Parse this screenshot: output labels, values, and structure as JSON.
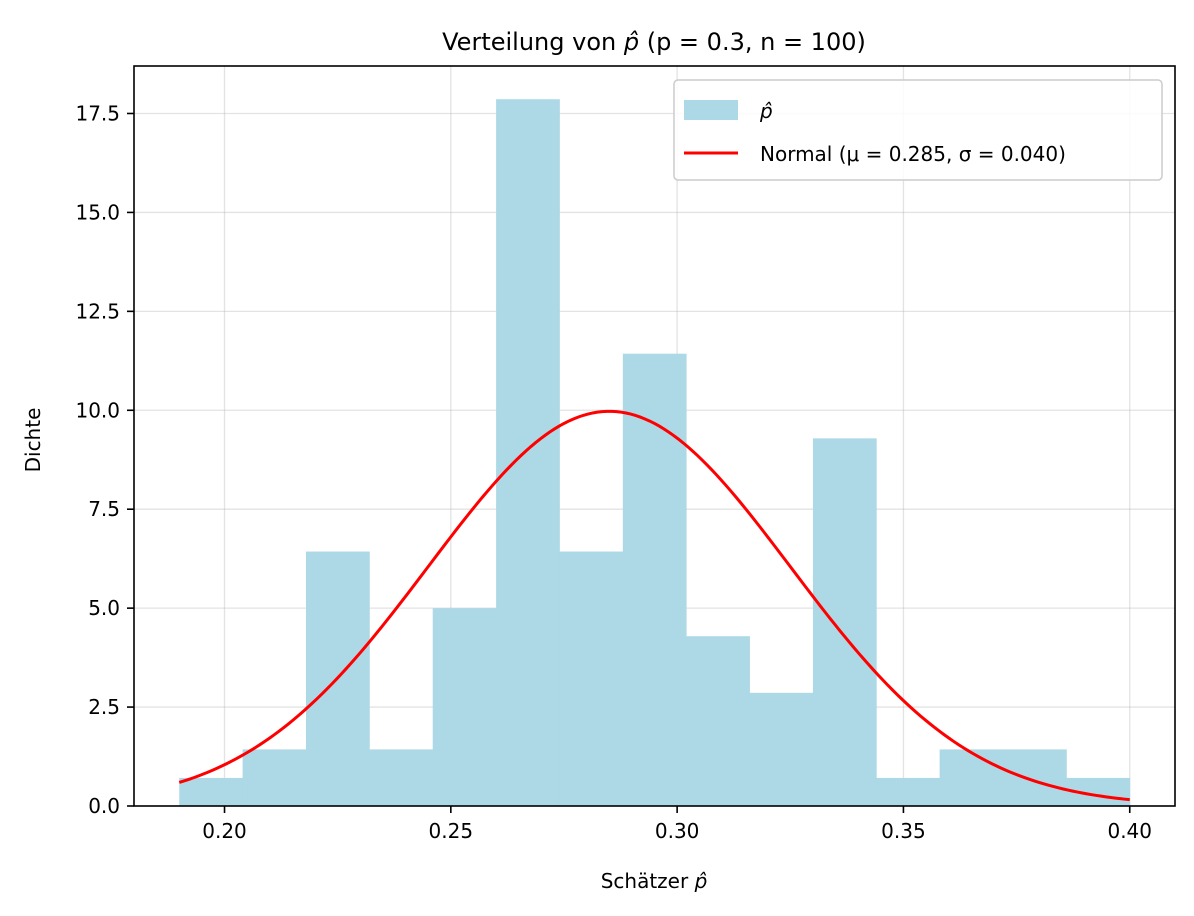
{
  "chart_data": {
    "type": "histogram",
    "title_prefix": "Verteilung von ",
    "title_symbol": "p̂",
    "title_suffix": " (p = 0.3, n = 100)",
    "xlabel_prefix": "Schätzer ",
    "xlabel_symbol": "p̂",
    "ylabel": "Dichte",
    "xlim": [
      0.18,
      0.41
    ],
    "ylim": [
      0,
      18.7
    ],
    "xticks": [
      0.2,
      0.25,
      0.3,
      0.35,
      0.4
    ],
    "xtick_labels": [
      "0.20",
      "0.25",
      "0.30",
      "0.35",
      "0.40"
    ],
    "yticks": [
      0.0,
      2.5,
      5.0,
      7.5,
      10.0,
      12.5,
      15.0,
      17.5
    ],
    "ytick_labels": [
      "0.0",
      "2.5",
      "5.0",
      "7.5",
      "10.0",
      "12.5",
      "15.0",
      "17.5"
    ],
    "grid": true,
    "legend_position": "top-right",
    "bin_edges": [
      0.19,
      0.204,
      0.218,
      0.232,
      0.246,
      0.26,
      0.274,
      0.288,
      0.302,
      0.316,
      0.33,
      0.344,
      0.358,
      0.372,
      0.386,
      0.4
    ],
    "densities": [
      0.71,
      1.43,
      6.43,
      1.43,
      5.0,
      17.86,
      6.43,
      11.43,
      4.29,
      2.86,
      9.29,
      0.71,
      1.43,
      1.43,
      0.71
    ],
    "histogram_color": "#ADD8E6",
    "normal_fit": {
      "mu": 0.285,
      "sigma": 0.04,
      "x_range": [
        0.19,
        0.4
      ],
      "color": "#FF0000"
    },
    "legend": [
      {
        "kind": "patch",
        "label": "p̂"
      },
      {
        "kind": "line",
        "label": "Normal (μ = 0.285, σ = 0.040)"
      }
    ]
  }
}
